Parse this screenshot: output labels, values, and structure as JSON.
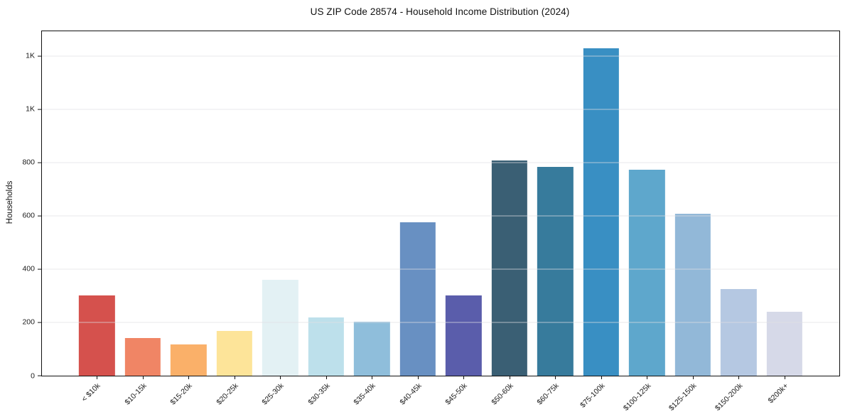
{
  "figure": {
    "background": "#ffffff"
  },
  "chart_data": {
    "type": "bar",
    "title": "US ZIP Code 28574 - Household Income Distribution (2024)",
    "xlabel": "",
    "ylabel": "Households",
    "categories": [
      "< $10k",
      "$10-15k",
      "$15-20k",
      "$20-25k",
      "$25-30k",
      "$30-35k",
      "$35-40k",
      "$40-45k",
      "$45-50k",
      "$50-60k",
      "$60-75k",
      "$75-100k",
      "$100-125k",
      "$125-150k",
      "$150-200k",
      "$200k+"
    ],
    "values": [
      302,
      141,
      117,
      168,
      360,
      218,
      203,
      576,
      302,
      807,
      785,
      1228,
      773,
      608,
      326,
      240
    ],
    "bar_colors": [
      "#d5514d",
      "#f08565",
      "#fab069",
      "#fde499",
      "#e3f1f4",
      "#bde0eb",
      "#8fbedb",
      "#6890c2",
      "#5a5dab",
      "#3a5f74",
      "#377b9c",
      "#398fc3",
      "#5ea7cc",
      "#92b8d8",
      "#b5c8e2",
      "#d6d9e8"
    ],
    "ylim": [
      0,
      1293
    ],
    "yticks": [
      {
        "value": 0,
        "label": "0"
      },
      {
        "value": 200,
        "label": "200"
      },
      {
        "value": 400,
        "label": "400"
      },
      {
        "value": 600,
        "label": "600"
      },
      {
        "value": 800,
        "label": "800"
      },
      {
        "value": 1000,
        "label": "1K"
      },
      {
        "value": 1200,
        "label": "1K"
      }
    ],
    "grid": "horizontal",
    "legend": "none",
    "axis_color": "#111111",
    "grid_color": "#e7e7e7"
  }
}
